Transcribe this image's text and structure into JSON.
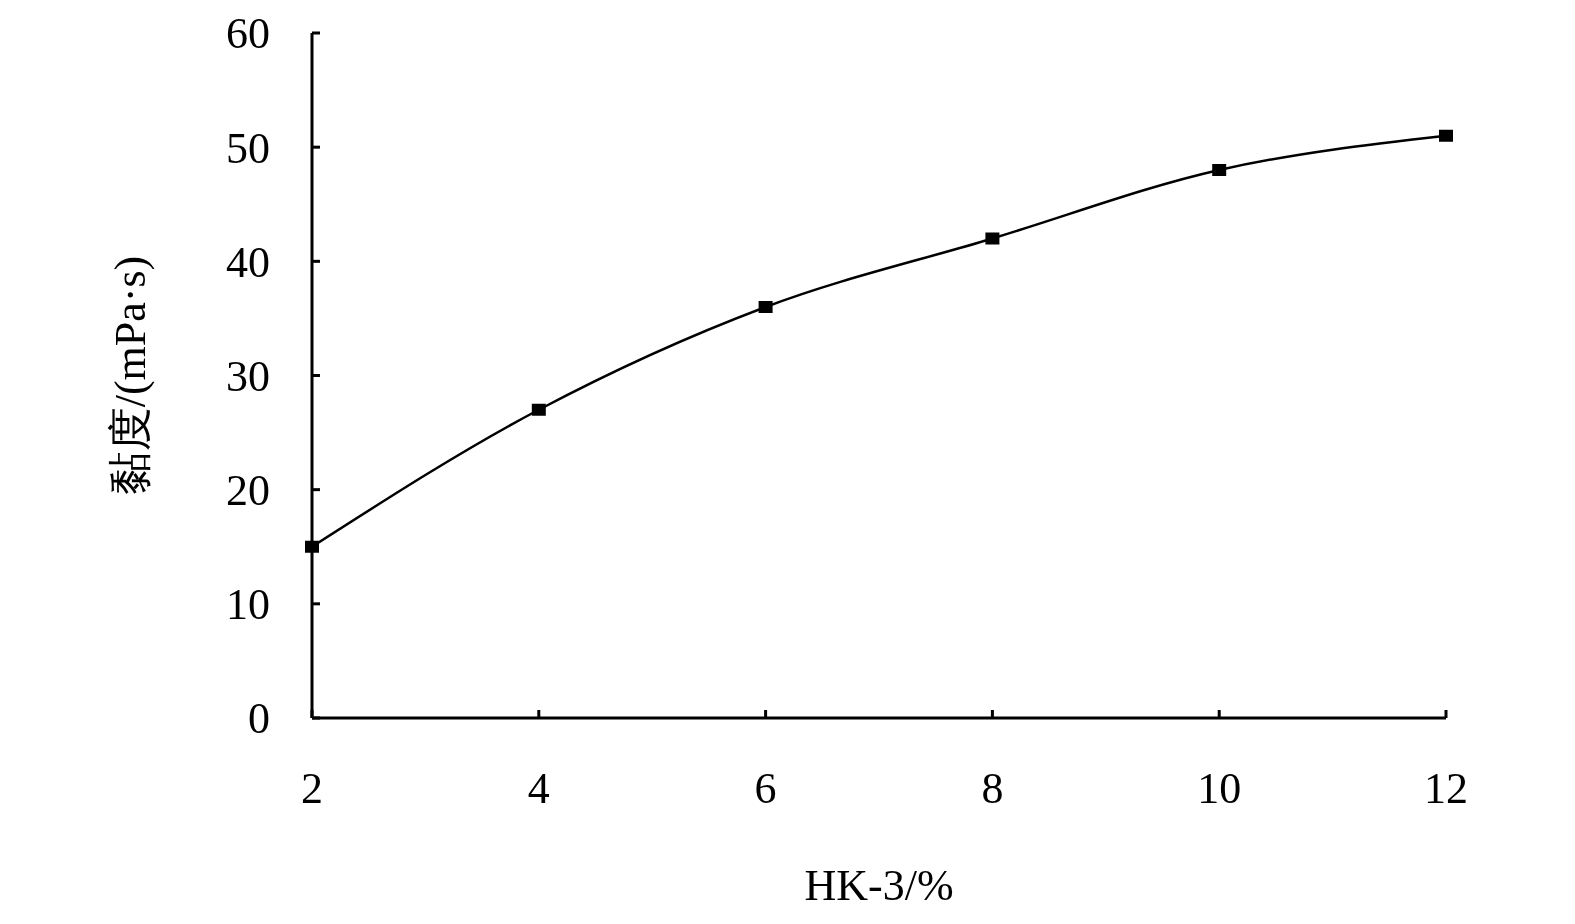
{
  "chart_data": {
    "type": "line",
    "xlabel": "HK-3/%",
    "ylabel": "黏度/(mPa·s)",
    "x": [
      2,
      4,
      6,
      8,
      10,
      12
    ],
    "series": [
      {
        "color": "#000000",
        "values": [
          15,
          27,
          36,
          42,
          48,
          51
        ]
      }
    ],
    "xlim": [
      2,
      12
    ],
    "xticks": [
      2,
      4,
      6,
      8,
      10,
      12
    ],
    "ylim": [
      0,
      60
    ],
    "yticks": [
      0,
      10,
      20,
      30,
      40,
      50,
      60
    ],
    "marker": "square",
    "line_style": "solid"
  }
}
